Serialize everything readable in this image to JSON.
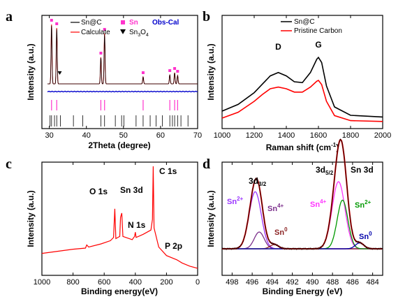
{
  "panel_letters": [
    "a",
    "b",
    "c",
    "d"
  ],
  "chart_data": [
    {
      "panel": "a",
      "type": "line",
      "xlabel": "2Theta (degree)",
      "ylabel": "Intensity (a.u.)",
      "xlim": [
        28,
        70
      ],
      "xticks": [
        30,
        40,
        50,
        60,
        70
      ],
      "legend": {
        "placement": "top",
        "entries": [
          {
            "name": "Sn@C",
            "color": "#000000",
            "marker": "line"
          },
          {
            "name": "Sn",
            "color": "#ff33cc",
            "marker": "square"
          },
          {
            "name": "Obs-Cal",
            "color": "#0000cc",
            "marker": "text"
          },
          {
            "name": "Calculate",
            "color": "#ff0000",
            "marker": "line"
          },
          {
            "name_main": "Sn",
            "name_sub": "3",
            "name_main2": "O",
            "name_sub2": "4",
            "color": "#000000",
            "marker": "triangle-down"
          }
        ]
      },
      "observed_peaks": [
        {
          "x": 30.6,
          "rel": 0.85
        },
        {
          "x": 32.0,
          "rel": 0.8
        },
        {
          "x": 43.9,
          "rel": 0.38
        },
        {
          "x": 44.9,
          "rel": 0.72
        },
        {
          "x": 55.3,
          "rel": 0.1
        },
        {
          "x": 62.5,
          "rel": 0.13
        },
        {
          "x": 63.8,
          "rel": 0.16
        },
        {
          "x": 64.6,
          "rel": 0.12
        }
      ],
      "sn_markers": [
        30.6,
        32.0,
        43.9,
        44.9,
        55.3,
        62.5,
        63.8,
        64.6
      ],
      "sn3o4_markers": [
        32.8
      ],
      "sn_ref_lines": [
        30.6,
        32.0,
        43.9,
        44.9,
        55.3,
        62.5,
        63.8,
        64.6
      ],
      "reflection_ticks": [
        30.2,
        30.6,
        31.4,
        32.0,
        33.0,
        36.5,
        39.0,
        43.9,
        44.9,
        47.8,
        49.5,
        50.1,
        53.4,
        55.3,
        57.2,
        58.8,
        60.5,
        62.5,
        63.2,
        63.8,
        64.6,
        65.5,
        67.4
      ]
    },
    {
      "panel": "b",
      "type": "line",
      "xlabel_main": "Raman shift (cm",
      "xlabel_sup": "-1",
      "xlabel_end": ")",
      "ylabel": "Intensity (a.u.)",
      "xlim": [
        1000,
        2000
      ],
      "xticks": [
        1000,
        1200,
        1400,
        1600,
        1800,
        2000
      ],
      "legend": {
        "placement": "top-right",
        "entries": [
          {
            "name": "Sn@C",
            "color": "#000000"
          },
          {
            "name": "Pristine Carbon",
            "color": "#ff0000"
          }
        ]
      },
      "peak_labels": [
        {
          "text": "D",
          "x": 1350
        },
        {
          "text": "G",
          "x": 1600
        }
      ],
      "series": [
        {
          "name": "Sn@C",
          "color": "#000000",
          "offset": 1.0,
          "x": [
            1000,
            1100,
            1200,
            1250,
            1300,
            1350,
            1400,
            1450,
            1500,
            1550,
            1590,
            1600,
            1620,
            1650,
            1700,
            1800,
            2000
          ],
          "y": [
            0.1,
            0.18,
            0.32,
            0.42,
            0.52,
            0.56,
            0.52,
            0.45,
            0.44,
            0.56,
            0.72,
            0.74,
            0.68,
            0.4,
            0.15,
            0.05,
            0.03
          ]
        },
        {
          "name": "Pristine Carbon",
          "color": "#ff0000",
          "offset": 0.0,
          "x": [
            1000,
            1100,
            1200,
            1250,
            1300,
            1350,
            1400,
            1450,
            1500,
            1550,
            1590,
            1600,
            1620,
            1650,
            1700,
            1800,
            2000
          ],
          "y": [
            0.05,
            0.12,
            0.25,
            0.33,
            0.4,
            0.42,
            0.4,
            0.36,
            0.36,
            0.42,
            0.49,
            0.5,
            0.45,
            0.25,
            0.08,
            0.02,
            0.01
          ]
        }
      ]
    },
    {
      "panel": "c",
      "type": "line",
      "xlabel": "Binding energy(eV)",
      "ylabel": "Intensity (a.u.)",
      "xlim": [
        1000,
        0
      ],
      "xticks": [
        1000,
        800,
        600,
        400,
        200,
        0
      ],
      "color": "#ff0000",
      "annotations": [
        {
          "text": "C 1s",
          "x": 285
        },
        {
          "text": "O 1s",
          "x": 532
        },
        {
          "text": "Sn 3d",
          "x": 487
        },
        {
          "text": "N 1s",
          "x": 400
        },
        {
          "text": "P 2p",
          "x": 133
        }
      ],
      "series": [
        {
          "x": [
            1000,
            900,
            800,
            720,
            712,
            700,
            620,
            560,
            540,
            532,
            525,
            500,
            495,
            487,
            480,
            420,
            405,
            400,
            395,
            350,
            300,
            290,
            285,
            280,
            250,
            200,
            133,
            100,
            50,
            0
          ],
          "y": [
            0.18,
            0.2,
            0.22,
            0.23,
            0.26,
            0.24,
            0.27,
            0.3,
            0.33,
            0.6,
            0.32,
            0.34,
            0.52,
            0.56,
            0.34,
            0.31,
            0.34,
            0.38,
            0.33,
            0.36,
            0.4,
            0.5,
            1.0,
            0.42,
            0.24,
            0.16,
            0.12,
            0.09,
            0.06,
            0.04
          ]
        }
      ]
    },
    {
      "panel": "d",
      "type": "line",
      "xlabel": "Binding Energy (eV)",
      "ylabel": "Intensity (a.u.)",
      "xlim": [
        499,
        483
      ],
      "xticks": [
        498,
        496,
        494,
        492,
        490,
        488,
        486,
        484
      ],
      "title": "Sn 3d",
      "envelope_color": "#cc0000",
      "baseline_color": "#8b1a1a",
      "components": [
        {
          "label": "Sn",
          "sup": "2+",
          "center": 495.7,
          "height": 0.68,
          "width": 0.85,
          "color": "#9933ff"
        },
        {
          "label": "Sn",
          "sup": "4+",
          "center": 495.3,
          "height": 0.2,
          "width": 0.7,
          "color": "#7b2f8b"
        },
        {
          "label": "Sn",
          "sup": "0",
          "center": 493.8,
          "height": 0.05,
          "width": 0.6,
          "color": "#8b2323"
        },
        {
          "label": "Sn",
          "sup": "4+",
          "center": 487.4,
          "height": 0.8,
          "width": 0.9,
          "color": "#ff33ff"
        },
        {
          "label": "Sn",
          "sup": "2+",
          "center": 487.0,
          "height": 0.58,
          "width": 0.75,
          "color": "#009900"
        },
        {
          "label": "Sn",
          "sup": "0",
          "center": 485.3,
          "height": 0.07,
          "width": 0.6,
          "color": "#0000aa"
        }
      ],
      "peak_titles": [
        {
          "main": "3d",
          "sub": "3/2",
          "x": 495.7
        },
        {
          "main": "3d",
          "sub": "5/2",
          "x": 487.2
        }
      ]
    }
  ]
}
